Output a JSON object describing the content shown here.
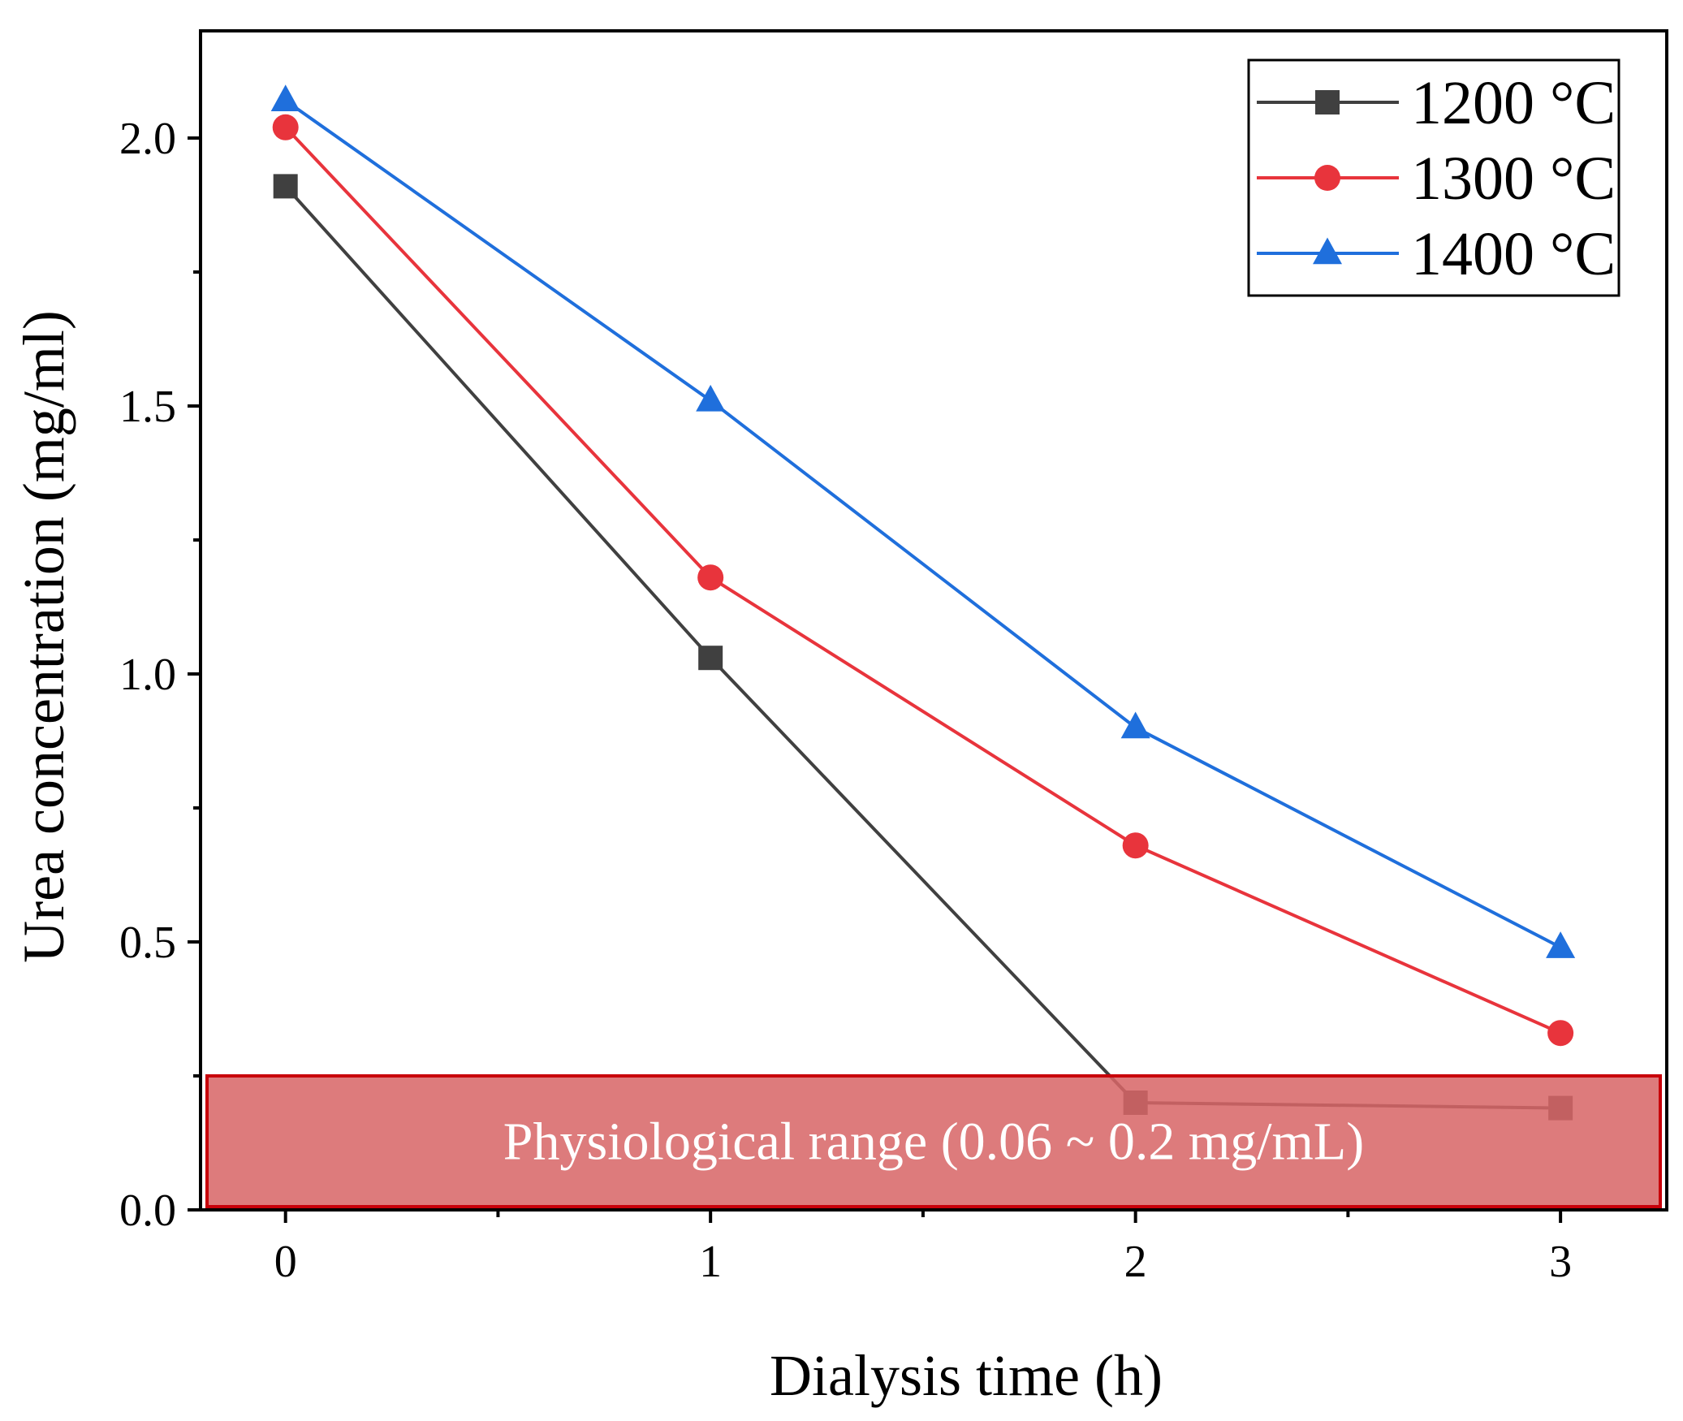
{
  "chart_data": {
    "type": "line",
    "title": "",
    "xlabel": "Dialysis time (h)",
    "ylabel": "Urea concentration (mg/ml)",
    "xlim": [
      -0.2,
      3.25
    ],
    "ylim": [
      0,
      2.2
    ],
    "x_ticks": [
      {
        "value": 0,
        "label": "0"
      },
      {
        "value": 1,
        "label": "1"
      },
      {
        "value": 2,
        "label": "2"
      },
      {
        "value": 3,
        "label": "3"
      }
    ],
    "x_minor_ticks": [
      0.5,
      1.5,
      2.5
    ],
    "y_ticks": [
      {
        "value": 0.0,
        "label": "0.0"
      },
      {
        "value": 0.5,
        "label": "0.5"
      },
      {
        "value": 1.0,
        "label": "1.0"
      },
      {
        "value": 1.5,
        "label": "1.5"
      },
      {
        "value": 2.0,
        "label": "2.0"
      }
    ],
    "y_minor_ticks": [
      0.25,
      0.75,
      1.25,
      1.75
    ],
    "grid": false,
    "legend_position": "top-right",
    "series": [
      {
        "name": "1200 °C",
        "color": "#404040",
        "marker": "square",
        "x": [
          0,
          1,
          2,
          3
        ],
        "y": [
          1.91,
          1.03,
          0.2,
          0.19
        ]
      },
      {
        "name": "1300 °C",
        "color": "#e8343c",
        "marker": "circle",
        "x": [
          0,
          1,
          2,
          3
        ],
        "y": [
          2.02,
          1.18,
          0.68,
          0.33
        ]
      },
      {
        "name": "1400 °C",
        "color": "#1f6fdc",
        "marker": "triangle",
        "x": [
          0,
          1,
          2,
          3
        ],
        "y": [
          2.07,
          1.51,
          0.9,
          0.49
        ]
      }
    ],
    "annotations": [
      {
        "type": "band",
        "label": "Physiological range (0.06 ~ 0.2 mg/mL)",
        "y_range": [
          0,
          0.25
        ],
        "fill_color": "#d76567",
        "edge_color": "#c8000a"
      }
    ]
  }
}
